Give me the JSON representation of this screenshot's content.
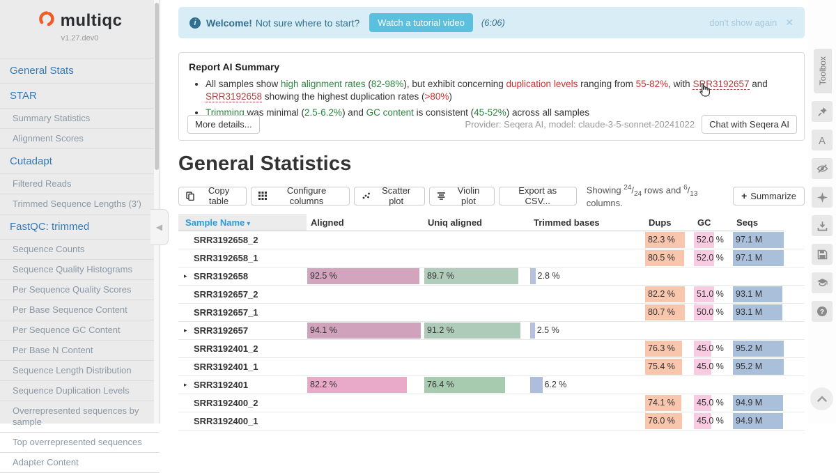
{
  "colors": {
    "accent_blue": "#337ab7",
    "sort_blue": "#2b9cd8",
    "banner_bg": "#d9edf7",
    "banner_text": "#31708f",
    "tutorial_btn": "#5bc0de",
    "green": "#2e8540",
    "red": "#cb302c",
    "link_red": "#a94442",
    "logo_orange": "#f05c28",
    "bars": {
      "aligned": "#d2a4be",
      "uniq": "#b1ccba",
      "trimmed": "#b5c1de",
      "dups": "#f8c5ad",
      "gc": "#f8cbe2",
      "seqs": "#a9bfda"
    }
  },
  "sidebar": {
    "logo_text": "multiqc",
    "version": "v1.27.dev0",
    "items": [
      {
        "label": "General Stats",
        "type": "section"
      },
      {
        "label": "STAR",
        "type": "section"
      },
      {
        "label": "Summary Statistics",
        "type": "sub"
      },
      {
        "label": "Alignment Scores",
        "type": "sub"
      },
      {
        "label": "Cutadapt",
        "type": "section"
      },
      {
        "label": "Filtered Reads",
        "type": "sub"
      },
      {
        "label": "Trimmed Sequence Lengths (3')",
        "type": "sub"
      },
      {
        "label": "FastQC: trimmed",
        "type": "section"
      },
      {
        "label": "Sequence Counts",
        "type": "sub"
      },
      {
        "label": "Sequence Quality Histograms",
        "type": "sub"
      },
      {
        "label": "Per Sequence Quality Scores",
        "type": "sub"
      },
      {
        "label": "Per Base Sequence Content",
        "type": "sub"
      },
      {
        "label": "Per Sequence GC Content",
        "type": "sub"
      },
      {
        "label": "Per Base N Content",
        "type": "sub"
      },
      {
        "label": "Sequence Length Distribution",
        "type": "sub"
      },
      {
        "label": "Sequence Duplication Levels",
        "type": "sub"
      },
      {
        "label": "Overrepresented sequences by sample",
        "type": "sub"
      },
      {
        "label": "Top overrepresented sequences",
        "type": "sub"
      },
      {
        "label": "Adapter Content",
        "type": "sub"
      }
    ]
  },
  "banner": {
    "bold": "Welcome!",
    "text": "Not sure where to start?",
    "button": "Watch a tutorial video",
    "duration": "(6:06)",
    "dismiss": "don't show again",
    "close_icon": "✕"
  },
  "ai_summary": {
    "title": "Report AI Summary",
    "bullet1": [
      {
        "text": "All samples show "
      },
      {
        "text": "high alignment rates",
        "style": "g"
      },
      {
        "text": " ("
      },
      {
        "text": "82-98%",
        "style": "g"
      },
      {
        "text": "), but exhibit concerning "
      },
      {
        "text": "duplication levels",
        "style": "r"
      },
      {
        "text": " ranging from "
      },
      {
        "text": "55-82%",
        "style": "r"
      },
      {
        "text": ", with "
      },
      {
        "text": "SRR3192657",
        "style": "l"
      },
      {
        "text": " and "
      },
      {
        "text": "SRR3192658",
        "style": "l"
      },
      {
        "text": " showing the highest duplication rates ("
      },
      {
        "text": ">80%",
        "style": "r"
      },
      {
        "text": ")"
      }
    ],
    "bullet2": [
      {
        "text": "Trimming",
        "style": "g"
      },
      {
        "text": " was minimal ("
      },
      {
        "text": "2.5-6.2%",
        "style": "g"
      },
      {
        "text": ") and "
      },
      {
        "text": "GC content",
        "style": "g"
      },
      {
        "text": " is consistent ("
      },
      {
        "text": "45-52%",
        "style": "g"
      },
      {
        "text": ") across all samples"
      }
    ],
    "more_button": "More details...",
    "provider": "Provider: Seqera AI, model: claude-3-5-sonnet-20241022",
    "chat_button": "Chat with Seqera AI"
  },
  "stats": {
    "title": "General Statistics",
    "toolbar": {
      "copy": "Copy table",
      "configure": "Configure columns",
      "scatter": "Scatter plot",
      "violin": "Violin plot",
      "export": "Export as CSV...",
      "summarize": "Summarize",
      "summarize_icon": "+"
    },
    "showing": {
      "prefix": "Showing",
      "rows_num": "24",
      "rows_den": "24",
      "mid": "rows and",
      "cols_num": "6",
      "cols_den": "13",
      "suffix": "columns."
    }
  },
  "table": {
    "headers": {
      "name": "Sample Name",
      "sort_caret": "▾",
      "aligned": "Aligned",
      "uniq": "Uniq aligned",
      "trimmed": "Trimmed bases",
      "dups": "Dups",
      "gc": "GC",
      "seqs": "Seqs"
    },
    "rows": [
      {
        "name": "SRR3192658_2",
        "group": false,
        "dups": {
          "text": "82.3 %",
          "pct": 82
        },
        "gc": {
          "text": "52.0 %",
          "pct": 52
        },
        "seqs": {
          "text": "97.1 M",
          "pct": 100
        }
      },
      {
        "name": "SRR3192658_1",
        "group": false,
        "dups": {
          "text": "80.5 %",
          "pct": 80
        },
        "gc": {
          "text": "52.0 %",
          "pct": 52
        },
        "seqs": {
          "text": "97.1 M",
          "pct": 100
        }
      },
      {
        "name": "SRR3192658",
        "group": true,
        "aligned": {
          "text": "92.5 %",
          "pct": 96,
          "color": "#d2a4be"
        },
        "uniq": {
          "text": "89.7 %",
          "pct": 89,
          "color": "#b1ccba"
        },
        "trimmed": {
          "text": "2.8 %",
          "pct": 5,
          "color": "#b5c1de"
        }
      },
      {
        "name": "SRR3192657_2",
        "group": false,
        "dups": {
          "text": "82.2 %",
          "pct": 82
        },
        "gc": {
          "text": "51.0 %",
          "pct": 51
        },
        "seqs": {
          "text": "93.1 M",
          "pct": 96
        }
      },
      {
        "name": "SRR3192657_1",
        "group": false,
        "dups": {
          "text": "80.7 %",
          "pct": 81
        },
        "gc": {
          "text": "50.0 %",
          "pct": 50
        },
        "seqs": {
          "text": "93.1 M",
          "pct": 96
        }
      },
      {
        "name": "SRR3192657",
        "group": true,
        "aligned": {
          "text": "94.1 %",
          "pct": 97,
          "color": "#d0a2bc"
        },
        "uniq": {
          "text": "91.2 %",
          "pct": 91,
          "color": "#aecab8"
        },
        "trimmed": {
          "text": "2.5 %",
          "pct": 4.5,
          "color": "#b5c1de"
        }
      },
      {
        "name": "SRR3192401_2",
        "group": false,
        "dups": {
          "text": "76.3 %",
          "pct": 76
        },
        "gc": {
          "text": "45.0 %",
          "pct": 45
        },
        "seqs": {
          "text": "95.2 M",
          "pct": 98
        }
      },
      {
        "name": "SRR3192401_1",
        "group": false,
        "dups": {
          "text": "75.4 %",
          "pct": 75
        },
        "gc": {
          "text": "45.0 %",
          "pct": 45
        },
        "seqs": {
          "text": "95.2 M",
          "pct": 98
        }
      },
      {
        "name": "SRR3192401",
        "group": true,
        "aligned": {
          "text": "82.2 %",
          "pct": 85,
          "color": "#e9aac9"
        },
        "uniq": {
          "text": "76.4 %",
          "pct": 76,
          "color": "#a7cbae"
        },
        "trimmed": {
          "text": "6.2 %",
          "pct": 11,
          "color": "#aebddc"
        }
      },
      {
        "name": "SRR3192400_2",
        "group": false,
        "dups": {
          "text": "74.1 %",
          "pct": 74
        },
        "gc": {
          "text": "45.0 %",
          "pct": 45
        },
        "seqs": {
          "text": "94.9 M",
          "pct": 97.5
        }
      },
      {
        "name": "SRR3192400_1",
        "group": false,
        "dups": {
          "text": "76.0 %",
          "pct": 76
        },
        "gc": {
          "text": "45.0 %",
          "pct": 45
        },
        "seqs": {
          "text": "94.9 M",
          "pct": 97.5
        }
      }
    ]
  },
  "toolbox": {
    "tab": "Toolbox",
    "icons": [
      "pin",
      "font",
      "eye-slash",
      "sparkle",
      "download",
      "save",
      "graduation-cap",
      "help"
    ]
  }
}
